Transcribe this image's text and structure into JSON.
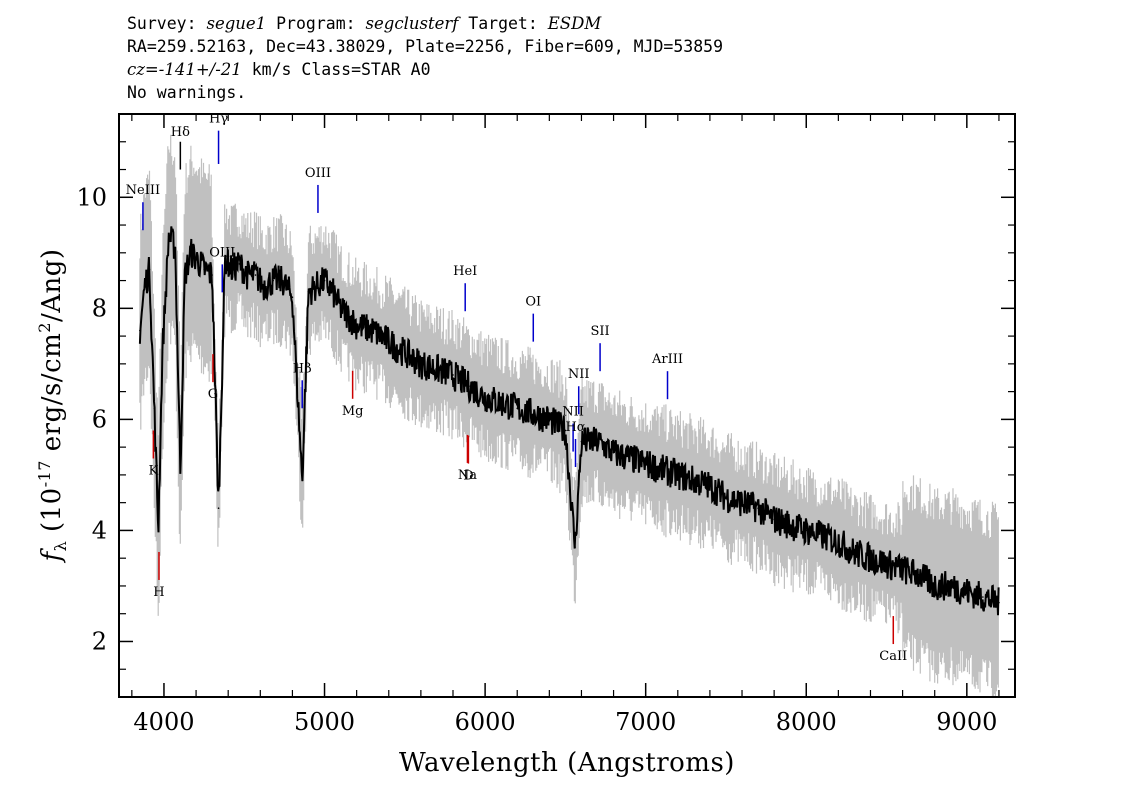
{
  "header": {
    "line1_survey_label": "Survey:",
    "line1_survey": "segue1",
    "line1_program_label": "Program:",
    "line1_program": "segclusterf",
    "line1_target_label": "Target:",
    "line1_target": "ESDM",
    "line2": "RA=259.52163, Dec=43.38029, Plate=2256, Fiber=609, MJD=53859",
    "line3_cz_label": "cz=",
    "line3_cz": "-141+/-21",
    "line3_rest": " km/s Class=STAR A0",
    "line4": "No warnings."
  },
  "chart_data": {
    "type": "line",
    "xlabel": "Wavelength (Angstroms)",
    "ylabel": "fλ (10^-17 erg/s/cm^2/Ang)",
    "xlim": [
      3720,
      9300
    ],
    "ylim": [
      1.0,
      11.5
    ],
    "xticks": [
      4000,
      5000,
      6000,
      7000,
      8000,
      9000
    ],
    "yticks": [
      2,
      4,
      6,
      8,
      10
    ],
    "series": [
      {
        "color": "#000000",
        "x": [
          3850,
          3880,
          3910,
          3940,
          3965,
          3990,
          4030,
          4070,
          4102,
          4130,
          4170,
          4200,
          4250,
          4300,
          4340,
          4380,
          4420,
          4470,
          4520,
          4570,
          4620,
          4680,
          4740,
          4800,
          4861,
          4900,
          4950,
          5000,
          5050,
          5100,
          5200,
          5300,
          5400,
          5500,
          5600,
          5700,
          5800,
          5900,
          6000,
          6100,
          6200,
          6300,
          6400,
          6500,
          6560,
          6600,
          6700,
          6800,
          6900,
          7000,
          7100,
          7200,
          7300,
          7400,
          7500,
          7600,
          7700,
          7800,
          7900,
          8000,
          8100,
          8200,
          8300,
          8400,
          8500,
          8600,
          8700,
          8800,
          8900,
          9000,
          9100,
          9200
        ],
        "y": [
          7.6,
          8.4,
          8.7,
          6.2,
          4.0,
          7.2,
          9.3,
          9.1,
          5.1,
          8.6,
          9.0,
          8.9,
          8.7,
          8.6,
          4.4,
          8.9,
          8.7,
          8.8,
          8.6,
          8.6,
          8.4,
          8.5,
          8.5,
          8.2,
          4.9,
          8.3,
          8.4,
          8.5,
          8.3,
          8.0,
          7.7,
          7.6,
          7.4,
          7.2,
          7.0,
          6.9,
          6.8,
          6.6,
          6.4,
          6.3,
          6.2,
          6.1,
          6.0,
          5.8,
          3.7,
          5.6,
          5.6,
          5.4,
          5.3,
          5.2,
          5.1,
          5.0,
          4.9,
          4.8,
          4.6,
          4.5,
          4.4,
          4.2,
          4.1,
          4.0,
          3.9,
          3.8,
          3.6,
          3.5,
          3.4,
          3.3,
          3.2,
          3.0,
          3.0,
          2.9,
          2.8,
          2.7
        ]
      }
    ],
    "line_labels": [
      {
        "label": "NeIII",
        "wavelength": 3869,
        "color": "#0000cc"
      },
      {
        "label": "Hδ",
        "wavelength": 4102,
        "color": "#000000"
      },
      {
        "label": "Hγ",
        "wavelength": 4340,
        "color": "#0000cc"
      },
      {
        "label": "OIII",
        "wavelength": 4363,
        "color": "#0000cc"
      },
      {
        "label": "Hβ",
        "wavelength": 4861,
        "color": "#0000cc"
      },
      {
        "label": "OIII",
        "wavelength": 4959,
        "color": "#0000cc"
      },
      {
        "label": "HeI",
        "wavelength": 5876,
        "color": "#0000cc"
      },
      {
        "label": "OI",
        "wavelength": 6300,
        "color": "#0000cc"
      },
      {
        "label": "NII",
        "wavelength": 6548,
        "color": "#0000cc"
      },
      {
        "label": "Hα",
        "wavelength": 6563,
        "color": "#0000cc"
      },
      {
        "label": "NII",
        "wavelength": 6583,
        "color": "#0000cc"
      },
      {
        "label": "SII",
        "wavelength": 6716,
        "color": "#0000cc"
      },
      {
        "label": "ArIII",
        "wavelength": 7136,
        "color": "#0000cc"
      },
      {
        "label": "Mg",
        "wavelength": 5175,
        "color": "#cc0000"
      },
      {
        "label": "Na",
        "wavelength": 5890,
        "color": "#cc0000"
      },
      {
        "label": "D",
        "wavelength": 5896,
        "color": "#cc0000"
      },
      {
        "label": "K",
        "wavelength": 3934,
        "color": "#cc0000"
      },
      {
        "label": "H",
        "wavelength": 3969,
        "color": "#cc0000"
      },
      {
        "label": "G",
        "wavelength": 4305,
        "color": "#cc0000"
      },
      {
        "label": "CaII",
        "wavelength": 8542,
        "color": "#cc0000"
      }
    ],
    "noise_color": "#c0c0c0",
    "grid": false
  }
}
